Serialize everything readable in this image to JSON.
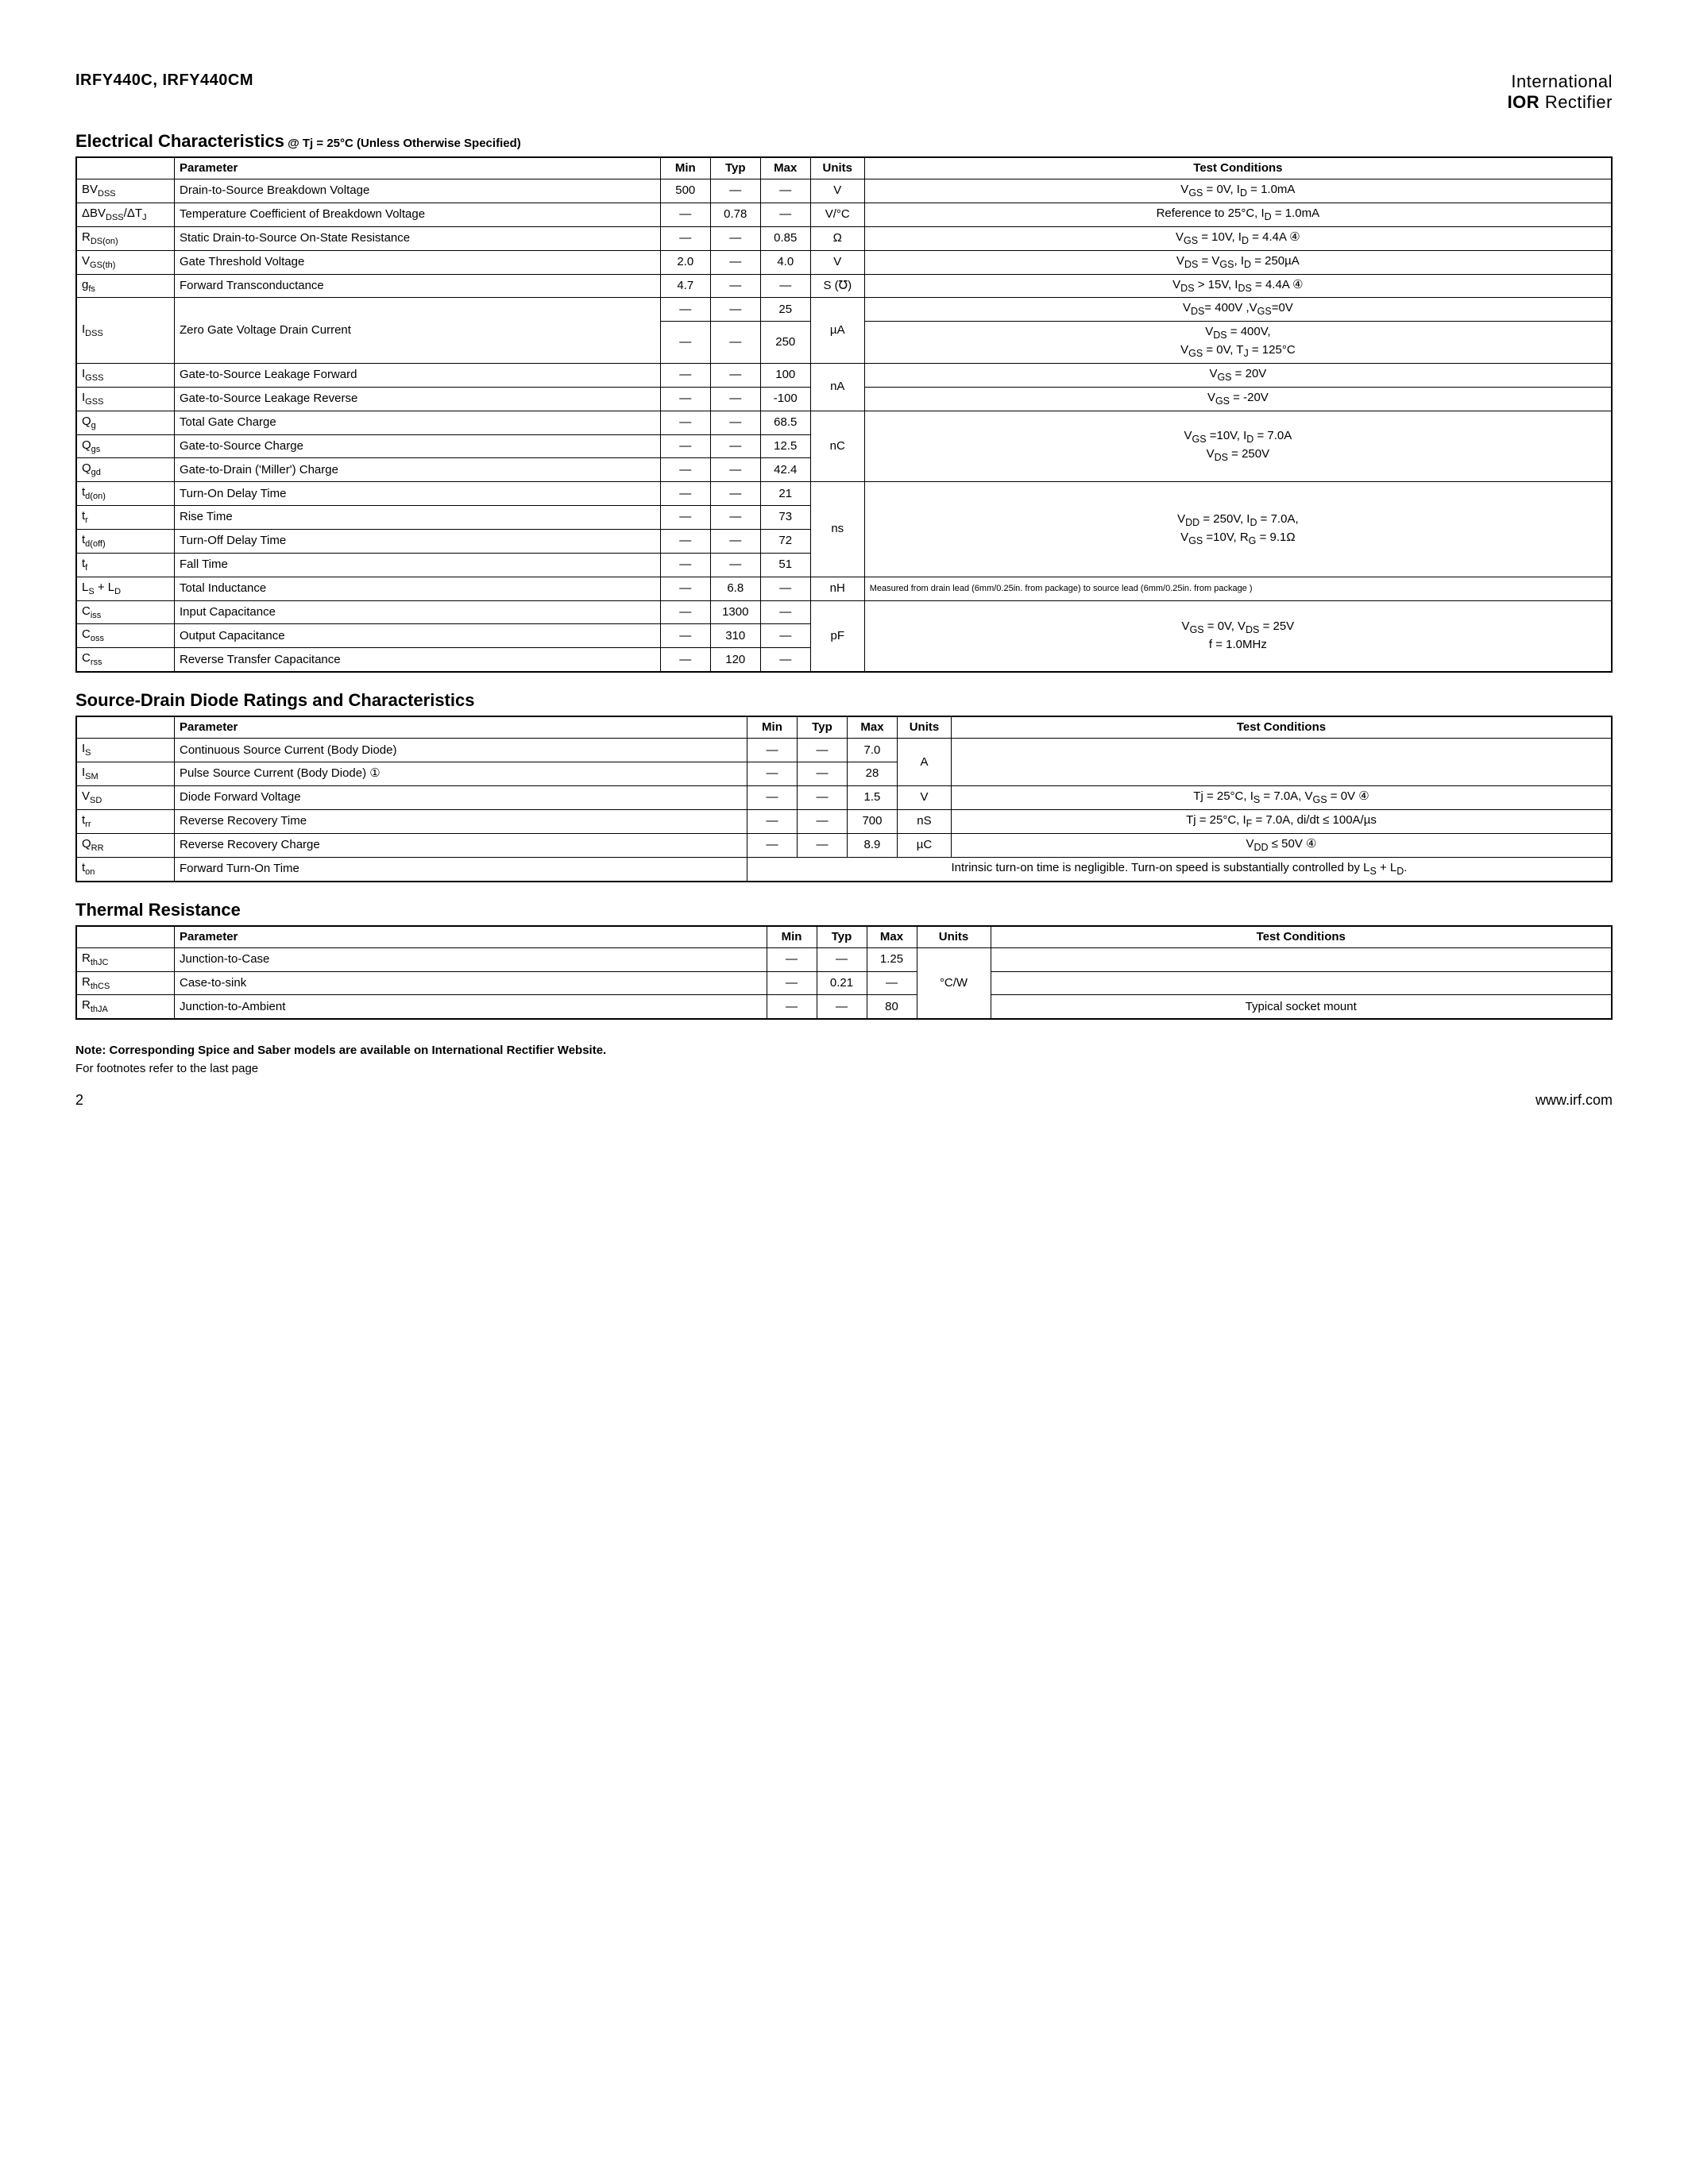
{
  "header": {
    "part_number": "IRFY440C, IRFY440CM",
    "brand_top": "International",
    "brand_ior": "IOR",
    "brand_rect": "Rectifier"
  },
  "section1": {
    "title": "Electrical Characteristics",
    "suffix": " @ Tj = 25°C (Unless Otherwise Specified)",
    "headers": [
      "",
      "Parameter",
      "Min",
      "Typ",
      "Max",
      "Units",
      "Test Conditions"
    ]
  },
  "t1": {
    "r1": {
      "sym": "BV",
      "sub": "DSS",
      "param": "Drain-to-Source Breakdown Voltage",
      "min": "500",
      "typ": "—",
      "max": "—",
      "unit": "V",
      "cond": "V<sub>GS</sub> = 0V, I<sub>D</sub> = 1.0mA"
    },
    "r2": {
      "sym": "ΔBV",
      "sub": "DSS",
      "sym2": "/ΔT",
      "sub2": "J",
      "param": "Temperature Coefficient of Breakdown Voltage",
      "min": "—",
      "typ": "0.78",
      "max": "—",
      "unit": "V/°C",
      "cond": "Reference to 25°C, I<sub>D</sub> = 1.0mA"
    },
    "r3": {
      "sym": "R",
      "sub": "DS(on)",
      "param": "Static Drain-to-Source On-State Resistance",
      "min": "—",
      "typ": "—",
      "max": "0.85",
      "unit": "Ω",
      "cond": "V<sub>GS</sub> = 10V, I<sub>D</sub> = 4.4A  ④"
    },
    "r4": {
      "sym": "V",
      "sub": "GS(th)",
      "param": "Gate Threshold Voltage",
      "min": "2.0",
      "typ": "—",
      "max": "4.0",
      "unit": "V",
      "cond": "V<sub>DS</sub> = V<sub>GS</sub>, I<sub>D</sub> = 250µA"
    },
    "r5": {
      "sym": "g",
      "sub": "fs",
      "param": "Forward Transconductance",
      "min": "4.7",
      "typ": "—",
      "max": "—",
      "unit": "S (℧)",
      "cond": "V<sub>DS</sub> > 15V, I<sub>DS</sub> = 4.4A ④"
    },
    "r6": {
      "sym": "I",
      "sub": "DSS",
      "param": "Zero Gate Voltage Drain Current",
      "min1": "—",
      "typ1": "—",
      "max1": "25",
      "unit": "µA",
      "cond1": "V<sub>DS</sub>= 400V ,V<sub>GS</sub>=0V",
      "min2": "—",
      "typ2": "—",
      "max2": "250",
      "cond2": "V<sub>DS</sub> = 400V,<br>V<sub>GS</sub> = 0V, T<sub>J</sub> = 125°C"
    },
    "r7": {
      "sym": "I",
      "sub": "GSS",
      "param": "Gate-to-Source Leakage Forward",
      "min": "—",
      "typ": "—",
      "max": "100",
      "unit": "nA",
      "cond": "V<sub>GS</sub> = 20V"
    },
    "r8": {
      "sym": "I",
      "sub": "GSS",
      "param": "Gate-to-Source Leakage Reverse",
      "min": "—",
      "typ": "—",
      "max": "-100",
      "cond": "V<sub>GS</sub> = -20V"
    },
    "r9": {
      "sym": "Q",
      "sub": "g",
      "param": "Total Gate Charge",
      "min": "—",
      "typ": "—",
      "max": "68.5",
      "unit": "nC",
      "cond": "V<sub>GS</sub> =10V, I<sub>D</sub> = 7.0A<br>V<sub>DS</sub> = 250V"
    },
    "r10": {
      "sym": "Q",
      "sub": "gs",
      "param": "Gate-to-Source Charge",
      "min": "—",
      "typ": "—",
      "max": "12.5"
    },
    "r11": {
      "sym": "Q",
      "sub": "gd",
      "param": "Gate-to-Drain ('Miller') Charge",
      "min": "—",
      "typ": "—",
      "max": "42.4"
    },
    "r12": {
      "sym": "t",
      "sub": "d(on)",
      "param": "Turn-On Delay Time",
      "min": "—",
      "typ": "—",
      "max": "21",
      "unit": "ns",
      "cond": "V<sub>DD</sub> = 250V, I<sub>D</sub> = 7.0A,<br>V<sub>GS</sub> =10V, R<sub>G</sub> = 9.1Ω"
    },
    "r13": {
      "sym": "t",
      "sub": "r",
      "param": "Rise Time",
      "min": "—",
      "typ": "—",
      "max": "73"
    },
    "r14": {
      "sym": "t",
      "sub": "d(off)",
      "param": "Turn-Off Delay Time",
      "min": "—",
      "typ": "—",
      "max": "72"
    },
    "r15": {
      "sym": "t",
      "sub": "f",
      "param": "Fall Time",
      "min": "—",
      "typ": "—",
      "max": "51"
    },
    "r16": {
      "sym": "L",
      "sub": "S",
      "sym2": " + L",
      "sub2": "D",
      "param": "Total Inductance",
      "min": "—",
      "typ": "6.8",
      "max": "—",
      "unit": "nH",
      "cond": "Measured from drain lead (6mm/0.25in. from package) to source lead (6mm/0.25in. from package )"
    },
    "r17": {
      "sym": "C",
      "sub": "iss",
      "param": "Input Capacitance",
      "min": "—",
      "typ": "1300",
      "max": "—",
      "unit": "pF",
      "cond": "V<sub>GS</sub> = 0V, V<sub>DS</sub> = 25V<br>f = 1.0MHz"
    },
    "r18": {
      "sym": "C",
      "sub": "oss",
      "param": "Output Capacitance",
      "min": "—",
      "typ": "310",
      "max": "—"
    },
    "r19": {
      "sym": "C",
      "sub": "rss",
      "param": "Reverse Transfer Capacitance",
      "min": "—",
      "typ": "120",
      "max": "—"
    }
  },
  "section2": {
    "title": "Source-Drain Diode Ratings and Characteristics",
    "headers": [
      "",
      "Parameter",
      "Min",
      "Typ",
      "Max",
      "Units",
      "Test Conditions"
    ]
  },
  "t2": {
    "r1": {
      "sym": "I",
      "sub": "S",
      "param": "Continuous Source Current (Body Diode)",
      "min": "—",
      "typ": "—",
      "max": "7.0",
      "unit": "A",
      "cond": ""
    },
    "r2": {
      "sym": "I",
      "sub": "SM",
      "param": "Pulse Source Current (Body Diode) ①",
      "min": "—",
      "typ": "—",
      "max": "28"
    },
    "r3": {
      "sym": "V",
      "sub": "SD",
      "param": "Diode Forward Voltage",
      "min": "—",
      "typ": "—",
      "max": "1.5",
      "unit": "V",
      "cond": "Tj = 25°C, I<sub>S</sub> = 7.0A, V<sub>GS</sub> = 0V ④"
    },
    "r4": {
      "sym": "t",
      "sub": "rr",
      "param": "Reverse Recovery Time",
      "min": "—",
      "typ": "—",
      "max": "700",
      "unit": "nS",
      "cond": "Tj = 25°C, I<sub>F</sub> = 7.0A, di/dt ≤ 100A/µs"
    },
    "r5": {
      "sym": "Q",
      "sub": "RR",
      "param": "Reverse Recovery Charge",
      "min": "—",
      "typ": "—",
      "max": "8.9",
      "unit": "µC",
      "cond": "V<sub>DD</sub> ≤ 50V ④"
    },
    "r6": {
      "sym": "t",
      "sub": "on",
      "param": "Forward Turn-On Time",
      "note": "Intrinsic turn-on time is negligible. Turn-on speed is substantially controlled by L<sub>S</sub> + L<sub>D</sub>."
    }
  },
  "section3": {
    "title": "Thermal Resistance",
    "headers": [
      "",
      "Parameter",
      "Min",
      "Typ",
      "Max",
      "Units",
      "Test Conditions"
    ]
  },
  "t3": {
    "r1": {
      "sym": "R",
      "sub": "thJC",
      "param": "Junction-to-Case",
      "min": "—",
      "typ": "—",
      "max": "1.25",
      "unit": "°C/W",
      "cond": ""
    },
    "r2": {
      "sym": "R",
      "sub": "thCS",
      "param": "Case-to-sink",
      "min": "—",
      "typ": "0.21",
      "max": "—",
      "cond": ""
    },
    "r3": {
      "sym": "R",
      "sub": "thJA",
      "param": "Junction-to-Ambient",
      "min": "—",
      "typ": "—",
      "max": "80",
      "cond": "Typical socket mount"
    }
  },
  "note": {
    "line1": "Note: Corresponding Spice and Saber models are available on International Rectifier Website.",
    "line2": "For footnotes refer to the last page"
  },
  "footer": {
    "page": "2",
    "url": "www.irf.com"
  }
}
